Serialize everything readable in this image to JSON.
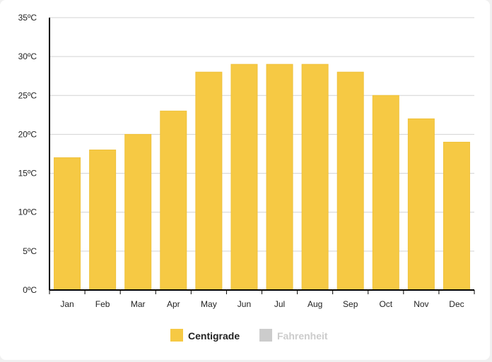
{
  "colors": {
    "bar": "#f6c944",
    "bar_stroke": "#efc23c",
    "grid": "#d3d3d3",
    "axis": "#000000",
    "legend_active_text": "#222222",
    "legend_inactive": "#cccccc"
  },
  "chart_data": {
    "type": "bar",
    "categories": [
      "Jan",
      "Feb",
      "Mar",
      "Apr",
      "May",
      "Jun",
      "Jul",
      "Aug",
      "Sep",
      "Oct",
      "Nov",
      "Dec"
    ],
    "series": [
      {
        "name": "Centigrade",
        "values": [
          17,
          18,
          20,
          23,
          28,
          29,
          29,
          29,
          28,
          25,
          22,
          19
        ],
        "active": true
      },
      {
        "name": "Fahrenheit",
        "active": false
      }
    ],
    "ylim": [
      0,
      35
    ],
    "yticks": [
      0,
      5,
      10,
      15,
      20,
      25,
      30,
      35
    ],
    "ytick_suffix": "ºC",
    "grid": true,
    "legend_position": "bottom-center"
  }
}
